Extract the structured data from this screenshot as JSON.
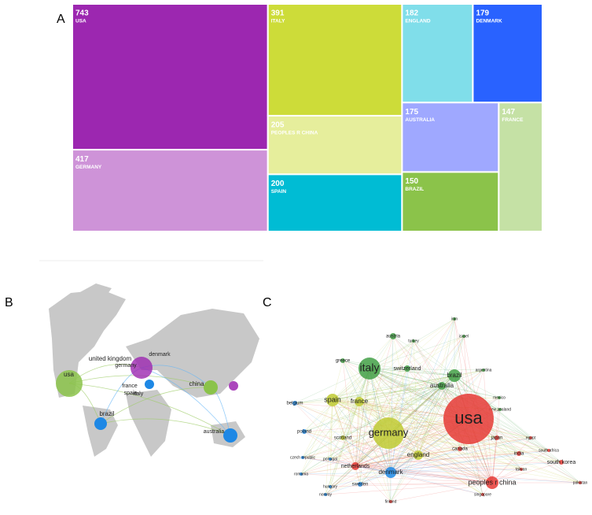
{
  "panels": {
    "a": "A",
    "b": "B",
    "c": "C"
  },
  "chart_data": {
    "type": "treemap",
    "categories": [
      "USA",
      "GERMANY",
      "ITALY",
      "PEOPLES R CHINA",
      "SPAIN",
      "ENGLAND",
      "DENMARK",
      "AUSTRALIA",
      "BRAZIL",
      "FRANCE"
    ],
    "values": [
      743,
      417,
      391,
      205,
      200,
      182,
      179,
      175,
      150,
      147
    ],
    "colors": [
      "#9c27b0",
      "#ce93d8",
      "#cddc39",
      "#e6ee9c",
      "#00bcd4",
      "#80deea",
      "#2962ff",
      "#9fa8ff",
      "#8bc34a",
      "#c5e1a5"
    ]
  },
  "map": {
    "labels": [
      "united kingdom",
      "germany",
      "denmark",
      "usa",
      "france",
      "spain",
      "italy",
      "china",
      "brazil",
      "australia"
    ]
  },
  "network": {
    "nodes": [
      "italy",
      "austria",
      "turkey",
      "iran",
      "israel",
      "greece",
      "switzerland",
      "brazil",
      "argentina",
      "australia",
      "mexico",
      "new zealand",
      "belgium",
      "spain",
      "france",
      "germany",
      "usa",
      "japan",
      "poland",
      "scotland",
      "canada",
      "egypt",
      "india",
      "south africa",
      "south korea",
      "pakistan",
      "czech republic",
      "portugal",
      "england",
      "taiwan",
      "romania",
      "netherlands",
      "denmark",
      "peoples r china",
      "norway",
      "hungary",
      "sweden",
      "singapore",
      "finland"
    ]
  }
}
